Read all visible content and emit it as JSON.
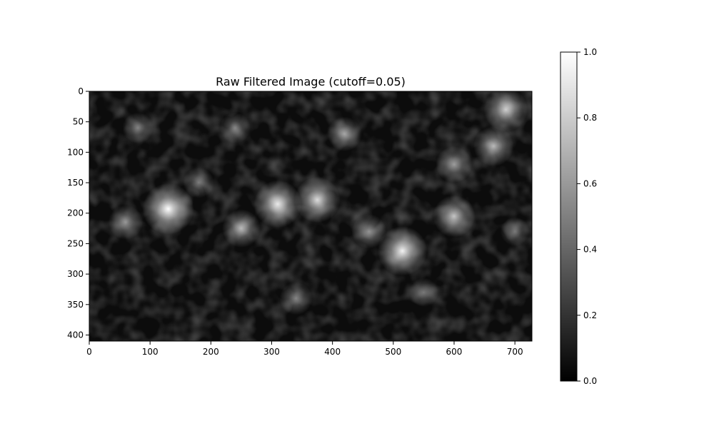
{
  "chart_data": {
    "type": "heatmap",
    "title": "Raw Filtered Image (cutoff=0.05)",
    "xlabel": "",
    "ylabel": "",
    "xlim": [
      0,
      728
    ],
    "ylim": [
      410,
      0
    ],
    "x_ticks": [
      "0",
      "100",
      "200",
      "300",
      "400",
      "500",
      "600",
      "700"
    ],
    "y_ticks": [
      "0",
      "50",
      "100",
      "150",
      "200",
      "250",
      "300",
      "350",
      "400"
    ],
    "colormap": "gray",
    "colorbar": {
      "range": [
        0,
        1
      ],
      "ticks": [
        "0.0",
        "0.2",
        "0.4",
        "0.6",
        "0.8",
        "1.0"
      ]
    },
    "grid": false,
    "legend": "none",
    "bright_spots": [
      {
        "x": 130,
        "y": 193,
        "value": 1.0
      },
      {
        "x": 310,
        "y": 185,
        "value": 0.9
      },
      {
        "x": 375,
        "y": 178,
        "value": 0.85
      },
      {
        "x": 515,
        "y": 262,
        "value": 0.95
      },
      {
        "x": 600,
        "y": 205,
        "value": 0.75
      },
      {
        "x": 685,
        "y": 30,
        "value": 0.8
      },
      {
        "x": 665,
        "y": 90,
        "value": 0.7
      },
      {
        "x": 250,
        "y": 225,
        "value": 0.65
      },
      {
        "x": 600,
        "y": 120,
        "value": 0.6
      },
      {
        "x": 420,
        "y": 70,
        "value": 0.55
      },
      {
        "x": 60,
        "y": 215,
        "value": 0.55
      },
      {
        "x": 340,
        "y": 340,
        "value": 0.5
      },
      {
        "x": 460,
        "y": 230,
        "value": 0.55
      },
      {
        "x": 180,
        "y": 150,
        "value": 0.45
      },
      {
        "x": 80,
        "y": 60,
        "value": 0.45
      },
      {
        "x": 550,
        "y": 330,
        "value": 0.4
      },
      {
        "x": 240,
        "y": 60,
        "value": 0.45
      },
      {
        "x": 700,
        "y": 230,
        "value": 0.4
      }
    ]
  }
}
